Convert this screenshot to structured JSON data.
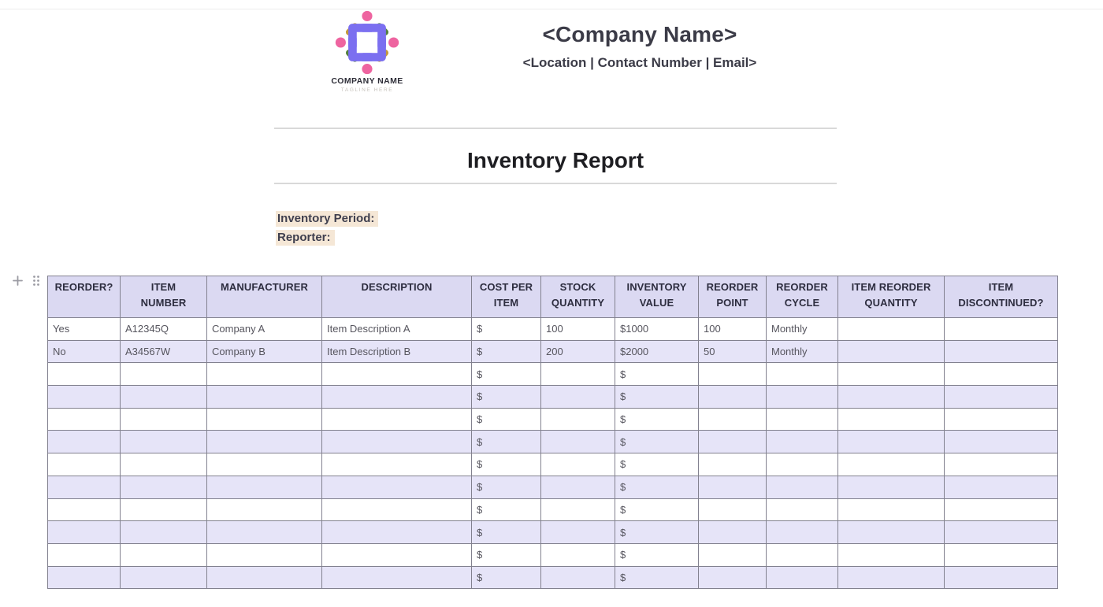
{
  "logo": {
    "company_name": "COMPANY NAME",
    "tagline": "TAGLINE HERE",
    "colors": {
      "purple": "#7b6ff0",
      "pink": "#ee64a0",
      "gold": "#c49a3c",
      "green": "#55803f"
    }
  },
  "header": {
    "company_name": "<Company Name>",
    "contact_line": "<Location | Contact Number | Email>"
  },
  "title": "Inventory Report",
  "meta": {
    "inventory_period_label": "Inventory Period:",
    "reporter_label": "Reporter:",
    "highlight_color": "#f5e7d6"
  },
  "controls": {
    "add_block": "plus",
    "drag_handle": "six-dot-grid"
  },
  "table": {
    "header_bg": "#dbd9f2",
    "alt_row_bg": "#e6e4f8",
    "border_color": "#82818f",
    "columns": [
      {
        "id": "reorder",
        "label": "REORDER?"
      },
      {
        "id": "item-number",
        "label": "ITEM\nNUMBER"
      },
      {
        "id": "manufacturer",
        "label": "MANUFACTURER"
      },
      {
        "id": "description",
        "label": "DESCRIPTION"
      },
      {
        "id": "cost-per-item",
        "label": "COST PER\nITEM"
      },
      {
        "id": "stock-quantity",
        "label": "STOCK\nQUANTITY"
      },
      {
        "id": "inventory-value",
        "label": "INVENTORY\nVALUE"
      },
      {
        "id": "reorder-point",
        "label": "REORDER\nPOINT"
      },
      {
        "id": "reorder-cycle",
        "label": "REORDER\nCYCLE"
      },
      {
        "id": "item-reorder-quantity",
        "label": "ITEM REORDER\nQUANTITY"
      },
      {
        "id": "item-discontinued",
        "label": "ITEM\nDISCONTINUED?"
      }
    ],
    "rows": [
      [
        "Yes",
        "A12345Q",
        "Company A",
        "Item Description A",
        "$",
        "100",
        "$1000",
        "100",
        "Monthly",
        "",
        ""
      ],
      [
        "No",
        "A34567W",
        "Company B",
        "Item Description B",
        "$",
        "200",
        "$2000",
        "50",
        "Monthly",
        "",
        ""
      ],
      [
        "",
        "",
        "",
        "",
        "$",
        "",
        "$",
        "",
        "",
        "",
        ""
      ],
      [
        "",
        "",
        "",
        "",
        "$",
        "",
        "$",
        "",
        "",
        "",
        ""
      ],
      [
        "",
        "",
        "",
        "",
        "$",
        "",
        "$",
        "",
        "",
        "",
        ""
      ],
      [
        "",
        "",
        "",
        "",
        "$",
        "",
        "$",
        "",
        "",
        "",
        ""
      ],
      [
        "",
        "",
        "",
        "",
        "$",
        "",
        "$",
        "",
        "",
        "",
        ""
      ],
      [
        "",
        "",
        "",
        "",
        "$",
        "",
        "$",
        "",
        "",
        "",
        ""
      ],
      [
        "",
        "",
        "",
        "",
        "$",
        "",
        "$",
        "",
        "",
        "",
        ""
      ],
      [
        "",
        "",
        "",
        "",
        "$",
        "",
        "$",
        "",
        "",
        "",
        ""
      ],
      [
        "",
        "",
        "",
        "",
        "$",
        "",
        "$",
        "",
        "",
        "",
        ""
      ],
      [
        "",
        "",
        "",
        "",
        "$",
        "",
        "$",
        "",
        "",
        "",
        ""
      ]
    ]
  }
}
